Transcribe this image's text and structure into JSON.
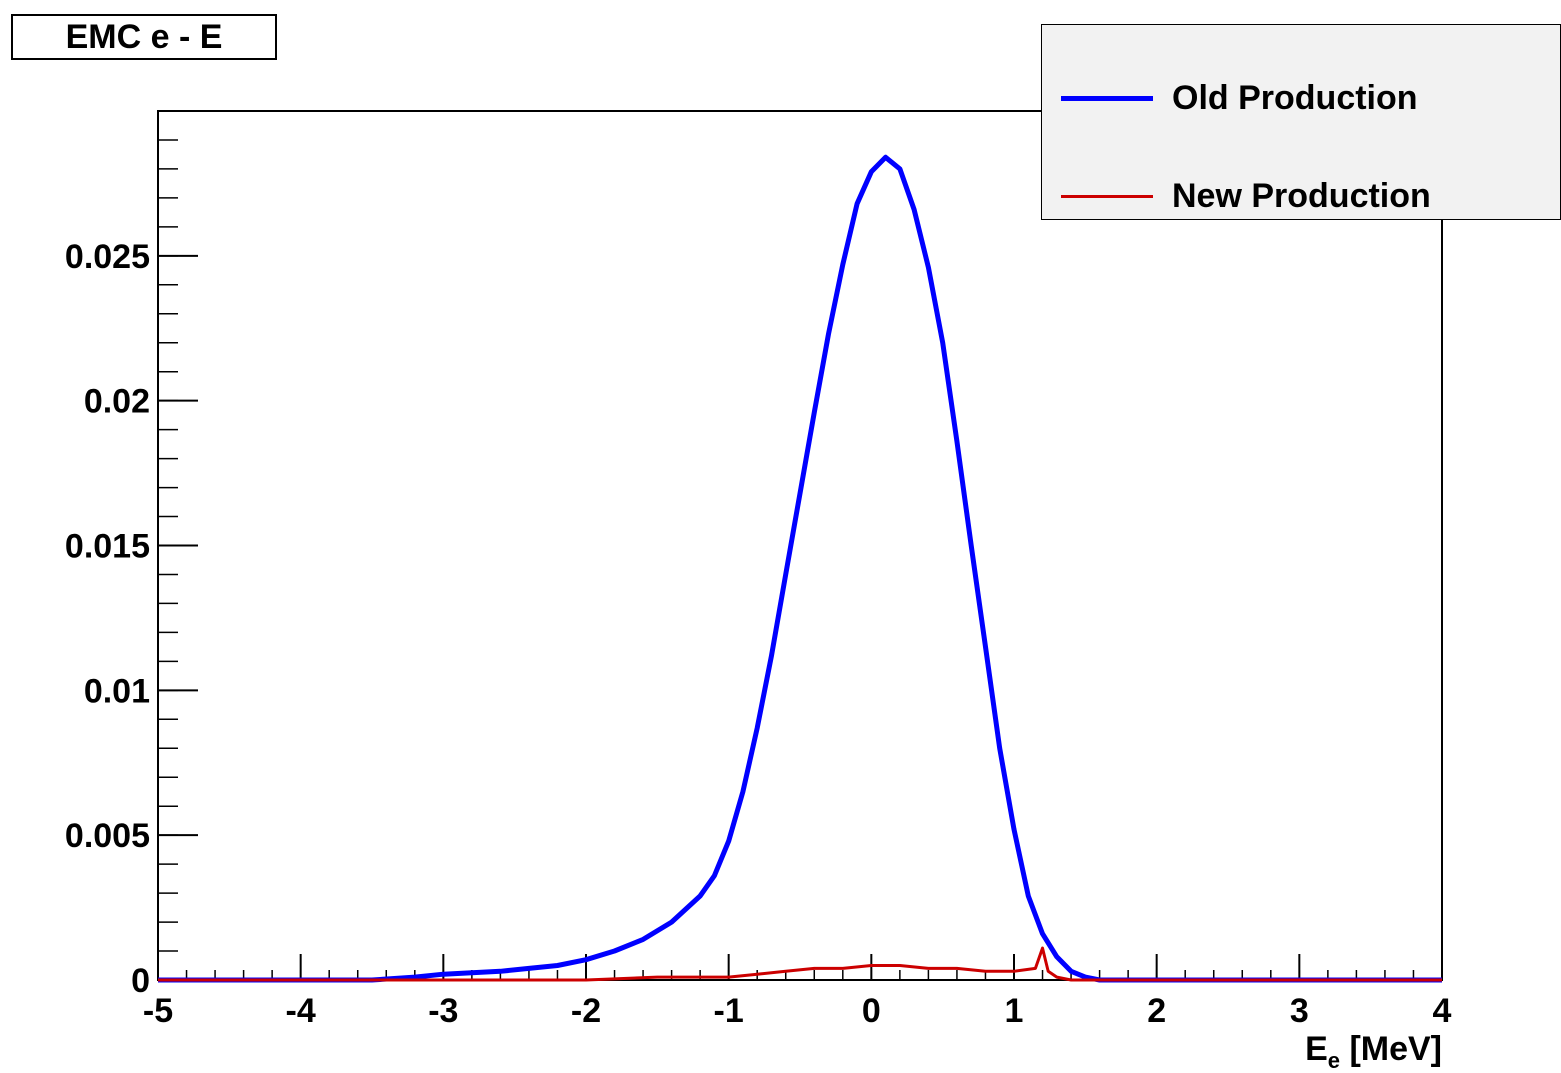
{
  "chart_data": {
    "type": "line",
    "title": "EMC e - E",
    "xlabel_main": "E",
    "xlabel_sub": "e",
    "xlabel_unit": " [MeV]",
    "xlim": [
      -5,
      4
    ],
    "ylim": [
      0,
      0.03
    ],
    "x_ticks": [
      -5,
      -4,
      -3,
      -2,
      -1,
      0,
      1,
      2,
      3,
      4
    ],
    "x_tick_labels": [
      "-5",
      "-4",
      "-3",
      "-2",
      "-1",
      "0",
      "1",
      "2",
      "3",
      "4"
    ],
    "y_ticks": [
      0,
      0.005,
      0.01,
      0.015,
      0.02,
      0.025
    ],
    "y_tick_labels": [
      "0",
      "0.005",
      "0.01",
      "0.015",
      "0.02",
      "0.025"
    ],
    "legend_position": "top-right",
    "series": [
      {
        "name": "Old Production",
        "color": "#0000ff",
        "points": [
          [
            -5.0,
            0.0
          ],
          [
            -3.5,
            0.0
          ],
          [
            -3.2,
            0.0001
          ],
          [
            -3.0,
            0.0002
          ],
          [
            -2.8,
            0.00025
          ],
          [
            -2.6,
            0.0003
          ],
          [
            -2.4,
            0.0004
          ],
          [
            -2.2,
            0.0005
          ],
          [
            -2.0,
            0.0007
          ],
          [
            -1.8,
            0.001
          ],
          [
            -1.6,
            0.0014
          ],
          [
            -1.4,
            0.002
          ],
          [
            -1.2,
            0.0029
          ],
          [
            -1.1,
            0.0036
          ],
          [
            -1.0,
            0.0048
          ],
          [
            -0.9,
            0.0065
          ],
          [
            -0.8,
            0.0087
          ],
          [
            -0.7,
            0.0112
          ],
          [
            -0.6,
            0.014
          ],
          [
            -0.5,
            0.0168
          ],
          [
            -0.4,
            0.0196
          ],
          [
            -0.3,
            0.0223
          ],
          [
            -0.2,
            0.0247
          ],
          [
            -0.1,
            0.0268
          ],
          [
            0.0,
            0.0279
          ],
          [
            0.1,
            0.0284
          ],
          [
            0.15,
            0.0282
          ],
          [
            0.2,
            0.028
          ],
          [
            0.3,
            0.0266
          ],
          [
            0.4,
            0.0246
          ],
          [
            0.5,
            0.022
          ],
          [
            0.6,
            0.0186
          ],
          [
            0.7,
            0.015
          ],
          [
            0.8,
            0.0115
          ],
          [
            0.9,
            0.008
          ],
          [
            1.0,
            0.0052
          ],
          [
            1.1,
            0.0029
          ],
          [
            1.2,
            0.0016
          ],
          [
            1.3,
            0.0008
          ],
          [
            1.4,
            0.0003
          ],
          [
            1.5,
            0.0001
          ],
          [
            1.6,
            0.0
          ],
          [
            4.0,
            0.0
          ]
        ]
      },
      {
        "name": "New Production",
        "color": "#cc0000",
        "points": [
          [
            -5.0,
            0.0
          ],
          [
            -2.0,
            0.0
          ],
          [
            -1.5,
            0.0001
          ],
          [
            -1.0,
            0.0001
          ],
          [
            -0.8,
            0.0002
          ],
          [
            -0.6,
            0.0003
          ],
          [
            -0.4,
            0.0004
          ],
          [
            -0.2,
            0.0004
          ],
          [
            0.0,
            0.0005
          ],
          [
            0.2,
            0.0005
          ],
          [
            0.4,
            0.0004
          ],
          [
            0.6,
            0.0004
          ],
          [
            0.8,
            0.0003
          ],
          [
            1.0,
            0.0003
          ],
          [
            1.15,
            0.0004
          ],
          [
            1.2,
            0.0011
          ],
          [
            1.24,
            0.0003
          ],
          [
            1.3,
            0.0001
          ],
          [
            1.4,
            0.0
          ],
          [
            4.0,
            0.0
          ]
        ]
      }
    ]
  }
}
